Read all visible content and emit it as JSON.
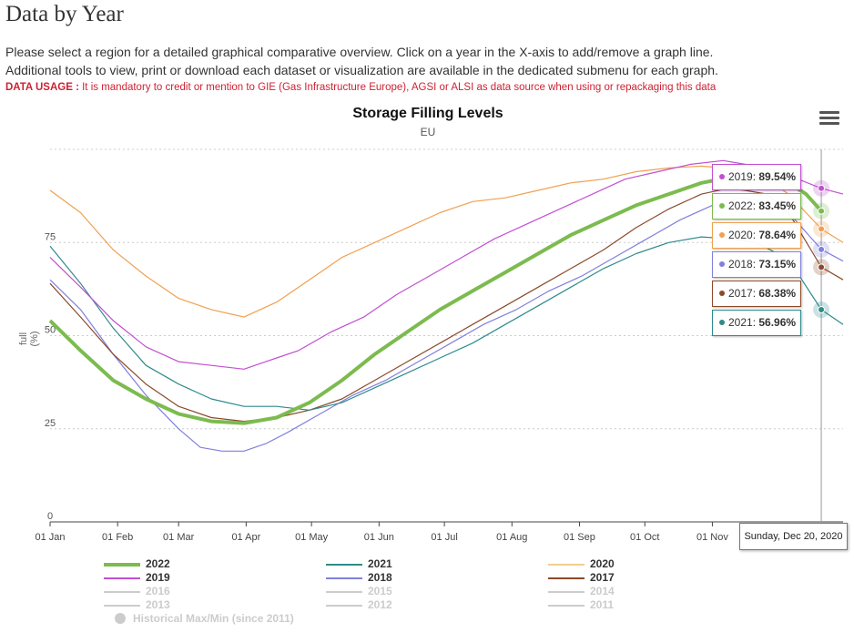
{
  "page": {
    "title": "Data by Year",
    "intro_line1": "Please select a region for a detailed graphical comparative overview. Click on a year in the X-axis to add/remove a graph line.",
    "intro_line2": "Additional tools to view, print or download each dataset or visualization are available in the dedicated submenu for each graph.",
    "usage_label": "DATA USAGE :",
    "usage_text": " It is mandatory to credit or mention to GIE (Gas Infrastructure Europe), AGSI or ALSI as data source when using or repackaging this data"
  },
  "chart_data": {
    "type": "line",
    "title": "Storage Filling Levels",
    "subtitle": "EU",
    "ylabel": "full\n(%)",
    "ylim": [
      0,
      100
    ],
    "yticks": [
      0,
      25,
      50,
      75
    ],
    "x_ticks": [
      "01 Jan",
      "01 Feb",
      "01 Mar",
      "01 Apr",
      "01 May",
      "01 Jun",
      "01 Jul",
      "01 Aug",
      "01 Sep",
      "01 Oct",
      "01 Nov"
    ],
    "x_unit": "day of year",
    "hover_day": 355,
    "hover_date": "Sunday, Dec 20, 2020",
    "grid": true,
    "legend_position": "bottom",
    "series": [
      {
        "name": "2022",
        "color": "#7cbb4f",
        "visible": true,
        "x": [
          1,
          15,
          30,
          45,
          60,
          75,
          90,
          105,
          120,
          135,
          150,
          165,
          180,
          195,
          210,
          225,
          240,
          255,
          270,
          285,
          300,
          313,
          320,
          330,
          340,
          348,
          355
        ],
        "y": [
          54,
          46,
          38,
          33,
          29,
          27,
          26.5,
          28,
          32,
          38,
          45,
          51,
          57,
          62,
          67,
          72,
          77,
          81,
          85,
          88,
          91,
          92.5,
          91.5,
          92,
          91,
          88,
          83.45
        ]
      },
      {
        "name": "2021",
        "color": "#2e8b8b",
        "visible": true,
        "x": [
          1,
          15,
          30,
          45,
          60,
          75,
          90,
          105,
          120,
          135,
          150,
          165,
          180,
          195,
          210,
          225,
          240,
          255,
          270,
          285,
          300,
          313,
          325,
          335,
          345,
          355,
          365
        ],
        "y": [
          74,
          64,
          52,
          42,
          37,
          33,
          31,
          31,
          30,
          32,
          36,
          40,
          44,
          48,
          53,
          58,
          63,
          68,
          72,
          75,
          76.5,
          76,
          75,
          72,
          66,
          56.96,
          53
        ]
      },
      {
        "name": "2020",
        "color": "#f0a050",
        "visible": true,
        "x": [
          1,
          15,
          30,
          45,
          60,
          75,
          90,
          105,
          120,
          135,
          150,
          165,
          180,
          195,
          210,
          225,
          240,
          255,
          270,
          285,
          300,
          310,
          320,
          330,
          340,
          355,
          365
        ],
        "y": [
          89,
          83,
          73,
          66,
          60,
          57,
          55,
          59,
          65,
          71,
          75,
          79,
          83,
          86,
          87,
          89,
          91,
          92,
          94,
          95,
          95.5,
          95,
          94,
          92,
          88,
          78.64,
          75
        ]
      },
      {
        "name": "2019",
        "color": "#c150d0",
        "visible": true,
        "x": [
          1,
          15,
          30,
          45,
          60,
          75,
          90,
          100,
          105,
          115,
          130,
          145,
          160,
          175,
          190,
          205,
          220,
          235,
          250,
          265,
          280,
          295,
          310,
          320,
          330,
          340,
          355,
          365
        ],
        "y": [
          71,
          63,
          54,
          47,
          43,
          42,
          41,
          43,
          44,
          46,
          51,
          55,
          61,
          66,
          71,
          76,
          80,
          84,
          88,
          92,
          94,
          96,
          97,
          96,
          95,
          93,
          89.54,
          88
        ]
      },
      {
        "name": "2018",
        "color": "#8080dc",
        "visible": true,
        "x": [
          1,
          15,
          30,
          45,
          60,
          70,
          80,
          90,
          100,
          110,
          125,
          140,
          155,
          170,
          185,
          200,
          215,
          230,
          245,
          260,
          275,
          290,
          305,
          318,
          330,
          340,
          355,
          365
        ],
        "y": [
          65,
          57,
          45,
          34,
          25,
          20,
          19,
          19,
          21,
          24,
          29,
          34,
          38,
          43,
          48,
          53,
          57,
          62,
          66,
          71,
          76,
          81,
          85,
          87,
          86,
          83,
          73.15,
          70
        ]
      },
      {
        "name": "2017",
        "color": "#8b4a2a",
        "visible": true,
        "x": [
          1,
          15,
          30,
          45,
          60,
          75,
          90,
          105,
          120,
          135,
          150,
          165,
          180,
          195,
          210,
          225,
          240,
          255,
          270,
          285,
          300,
          312,
          320,
          330,
          340,
          355,
          365
        ],
        "y": [
          64,
          55,
          45,
          37,
          31,
          28,
          27,
          28,
          30,
          33,
          38,
          43,
          48,
          53,
          58,
          63,
          68,
          73,
          79,
          84,
          88,
          89.5,
          89,
          88,
          83,
          68.38,
          65
        ]
      }
    ],
    "legend": [
      {
        "name": "2022",
        "color": "#7cbb4f",
        "hidden": false
      },
      {
        "name": "2021",
        "color": "#2e8b8b",
        "hidden": false
      },
      {
        "name": "2020",
        "color": "#f0d090",
        "hidden": false
      },
      {
        "name": "2019",
        "color": "#c150d0",
        "hidden": false
      },
      {
        "name": "2018",
        "color": "#8080dc",
        "hidden": false
      },
      {
        "name": "2017",
        "color": "#8b4a2a",
        "hidden": false
      },
      {
        "name": "2016",
        "color": "#cccccc",
        "hidden": true
      },
      {
        "name": "2015",
        "color": "#cccccc",
        "hidden": true
      },
      {
        "name": "2014",
        "color": "#cccccc",
        "hidden": true
      },
      {
        "name": "2013",
        "color": "#cccccc",
        "hidden": true
      },
      {
        "name": "2012",
        "color": "#cccccc",
        "hidden": true
      },
      {
        "name": "2011",
        "color": "#cccccc",
        "hidden": true
      },
      {
        "name": "Historical Max/Min (since 2011)",
        "color": "#cccccc",
        "hidden": true
      }
    ],
    "tooltips": [
      {
        "year": "2019",
        "value": "89.54%",
        "color": "#c150d0"
      },
      {
        "year": "2022",
        "value": "83.45%",
        "color": "#7cbb4f"
      },
      {
        "year": "2020",
        "value": "78.64%",
        "color": "#f0a050"
      },
      {
        "year": "2018",
        "value": "73.15%",
        "color": "#8080dc"
      },
      {
        "year": "2017",
        "value": "68.38%",
        "color": "#8b4a2a"
      },
      {
        "year": "2021",
        "value": "56.96%",
        "color": "#2e8b8b"
      }
    ]
  }
}
